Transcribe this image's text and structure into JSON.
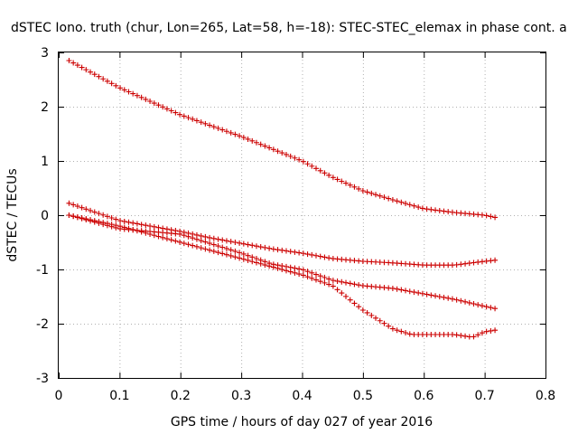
{
  "chart_data": {
    "type": "scatter",
    "title": "dSTEC Iono. truth (chur, Lon=265, Lat=58, h=-18): STEC-STEC_elemax in phase cont. a",
    "xlabel": "GPS time / hours of day 027 of year 2016",
    "ylabel": "dSTEC  / TECUs",
    "xlim": [
      0,
      0.8
    ],
    "ylim": [
      -3,
      3
    ],
    "xticks": [
      0,
      0.1,
      0.2,
      0.3,
      0.4,
      0.5,
      0.6,
      0.7,
      0.8
    ],
    "xtick_labels": [
      "0",
      "0.1",
      "0.2",
      "0.3",
      "0.4",
      "0.5",
      "0.6",
      "0.7",
      "0.8"
    ],
    "yticks": [
      -3,
      -2,
      -1,
      0,
      1,
      2,
      3
    ],
    "ytick_labels": [
      "-3",
      "-2",
      "-1",
      "0",
      "1",
      "2",
      "3"
    ],
    "grid": true,
    "marker": "+",
    "color": "#cc0000",
    "series": [
      {
        "name": "series-1",
        "x": [
          0.017,
          0.1,
          0.2,
          0.3,
          0.4,
          0.45,
          0.5,
          0.55,
          0.6,
          0.65,
          0.7,
          0.717
        ],
        "y": [
          2.85,
          2.35,
          1.85,
          1.45,
          1.0,
          0.7,
          0.45,
          0.28,
          0.12,
          0.05,
          0.0,
          -0.04
        ]
      },
      {
        "name": "series-2",
        "x": [
          0.017,
          0.1,
          0.2,
          0.25,
          0.3,
          0.35,
          0.4,
          0.45,
          0.5,
          0.55,
          0.6,
          0.65,
          0.7,
          0.717
        ],
        "y": [
          0.22,
          -0.1,
          -0.3,
          -0.42,
          -0.52,
          -0.62,
          -0.7,
          -0.8,
          -0.85,
          -0.88,
          -0.92,
          -0.92,
          -0.85,
          -0.83
        ]
      },
      {
        "name": "series-3",
        "x": [
          0.017,
          0.1,
          0.2,
          0.3,
          0.35,
          0.4,
          0.45,
          0.5,
          0.55,
          0.6,
          0.65,
          0.7,
          0.717
        ],
        "y": [
          0.0,
          -0.25,
          -0.35,
          -0.7,
          -0.9,
          -1.0,
          -1.2,
          -1.3,
          -1.35,
          -1.45,
          -1.55,
          -1.68,
          -1.72
        ]
      },
      {
        "name": "series-4",
        "x": [
          0.017,
          0.1,
          0.2,
          0.3,
          0.35,
          0.4,
          0.45,
          0.5,
          0.55,
          0.58,
          0.62,
          0.65,
          0.68,
          0.7,
          0.717
        ],
        "y": [
          0.0,
          -0.2,
          -0.5,
          -0.8,
          -0.95,
          -1.1,
          -1.3,
          -1.75,
          -2.1,
          -2.2,
          -2.2,
          -2.2,
          -2.25,
          -2.15,
          -2.12
        ]
      }
    ]
  }
}
